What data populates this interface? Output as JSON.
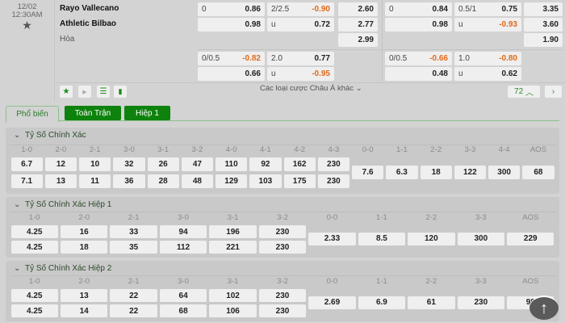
{
  "match": {
    "date": "12/02",
    "time": "12:30AM",
    "home": "Rayo Vallecano",
    "away": "Athletic Bilbao",
    "draw": "Hòa",
    "full_time": {
      "handicap": [
        {
          "line": "0",
          "odds": "0.86"
        },
        {
          "line": "",
          "odds": "0.98"
        }
      ],
      "over_under": [
        {
          "line": "2/2.5",
          "odds": "-0.90"
        },
        {
          "line": "u",
          "odds": "0.72"
        }
      ],
      "one_x_two": [
        "2.60",
        "2.77",
        "2.99"
      ]
    },
    "full_time_alt": {
      "handicap": [
        {
          "line": "0/0.5",
          "odds": "-0.82"
        },
        {
          "line": "",
          "odds": "0.66"
        }
      ],
      "over_under": [
        {
          "line": "2.0",
          "odds": "0.77"
        },
        {
          "line": "u",
          "odds": "-0.95"
        }
      ]
    },
    "first_half": {
      "handicap": [
        {
          "line": "0",
          "odds": "0.84"
        },
        {
          "line": "",
          "odds": "0.98"
        }
      ],
      "over_under": [
        {
          "line": "0.5/1",
          "odds": "0.75"
        },
        {
          "line": "u",
          "odds": "-0.93"
        }
      ],
      "one_x_two": [
        "3.35",
        "3.60",
        "1.90"
      ]
    },
    "first_half_alt": {
      "handicap": [
        {
          "line": "0/0.5",
          "odds": "-0.66"
        },
        {
          "line": "",
          "odds": "0.48"
        }
      ],
      "over_under": [
        {
          "line": "1.0",
          "odds": "-0.80"
        },
        {
          "line": "u",
          "odds": "0.62"
        }
      ]
    },
    "more_label": "Các loại cược Châu Á khác",
    "more_count": "72",
    "toolbar_icons": [
      "star-icon",
      "play-icon",
      "list-icon",
      "stats-icon"
    ]
  },
  "tabs": [
    "Phổ biến",
    "Toàn Trận",
    "Hiệp 1"
  ],
  "sections": [
    {
      "title": "Tỷ Số Chính Xác",
      "left": [
        [
          "1-0",
          "6.7",
          "7.1"
        ],
        [
          "2-0",
          "12",
          "13"
        ],
        [
          "2-1",
          "10",
          "11"
        ],
        [
          "3-0",
          "32",
          "36"
        ],
        [
          "3-1",
          "26",
          "28"
        ],
        [
          "3-2",
          "47",
          "48"
        ],
        [
          "4-0",
          "110",
          "129"
        ],
        [
          "4-1",
          "92",
          "103"
        ],
        [
          "4-2",
          "162",
          "175"
        ],
        [
          "4-3",
          "230",
          "230"
        ]
      ],
      "right": [
        [
          "0-0",
          "7.6"
        ],
        [
          "1-1",
          "6.3"
        ],
        [
          "2-2",
          "18"
        ],
        [
          "3-3",
          "122"
        ],
        [
          "4-4",
          "300"
        ],
        [
          "AOS",
          "68"
        ]
      ]
    },
    {
      "title": "Tỷ Số Chính Xác Hiệp 1",
      "left": [
        [
          "1-0",
          "4.25",
          "4.25"
        ],
        [
          "2-0",
          "16",
          "18"
        ],
        [
          "2-1",
          "33",
          "35"
        ],
        [
          "3-0",
          "94",
          "112"
        ],
        [
          "3-1",
          "196",
          "221"
        ],
        [
          "3-2",
          "230",
          "230"
        ]
      ],
      "right": [
        [
          "0-0",
          "2.33"
        ],
        [
          "1-1",
          "8.5"
        ],
        [
          "2-2",
          "120"
        ],
        [
          "3-3",
          "300"
        ],
        [
          "AOS",
          "229"
        ]
      ]
    },
    {
      "title": "Tỷ Số Chính Xác Hiệp 2",
      "left": [
        [
          "1-0",
          "4.25",
          "4.25"
        ],
        [
          "2-0",
          "13",
          "14"
        ],
        [
          "2-1",
          "22",
          "22"
        ],
        [
          "3-0",
          "64",
          "68"
        ],
        [
          "3-1",
          "102",
          "106"
        ],
        [
          "3-2",
          "230",
          "230"
        ]
      ],
      "right": [
        [
          "0-0",
          "2.69"
        ],
        [
          "1-1",
          "6.9"
        ],
        [
          "2-2",
          "61"
        ],
        [
          "3-3",
          "230"
        ],
        [
          "AOS",
          "98"
        ]
      ]
    }
  ],
  "colors": {
    "accent": "#0d820d",
    "negative": "#e06a1a"
  }
}
